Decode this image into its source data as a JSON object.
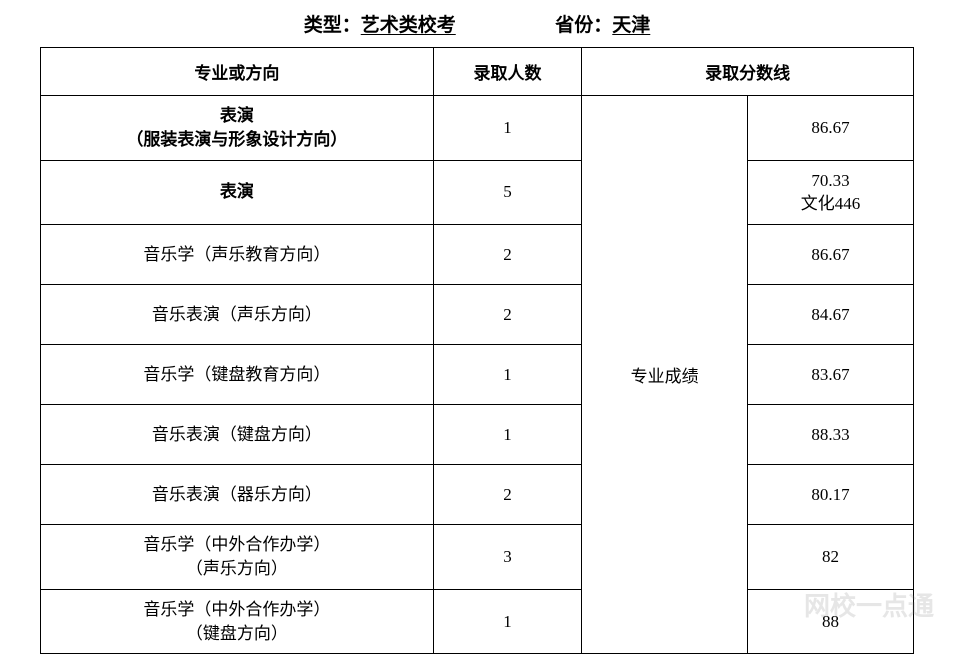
{
  "header": {
    "type_label": "类型：",
    "type_value": "艺术类校考",
    "province_label": "省份：",
    "province_value": "天津"
  },
  "table": {
    "columns": {
      "major": "专业或方向",
      "count": "录取人数",
      "scoreline": "录取分数线"
    },
    "merged_category": "专业成绩",
    "rows": [
      {
        "major_line1": "表演",
        "major_line2": "（服装表演与形象设计方向）",
        "count": "1",
        "score_line1": "86.67",
        "score_line2": "",
        "bold": true
      },
      {
        "major_line1": "表演",
        "major_line2": "",
        "count": "5",
        "score_line1": "70.33",
        "score_line2": "文化446",
        "bold": true
      },
      {
        "major_line1": "音乐学（声乐教育方向）",
        "major_line2": "",
        "count": "2",
        "score_line1": "86.67",
        "score_line2": "",
        "bold": false
      },
      {
        "major_line1": "音乐表演（声乐方向）",
        "major_line2": "",
        "count": "2",
        "score_line1": "84.67",
        "score_line2": "",
        "bold": false
      },
      {
        "major_line1": "音乐学（键盘教育方向）",
        "major_line2": "",
        "count": "1",
        "score_line1": "83.67",
        "score_line2": "",
        "bold": false
      },
      {
        "major_line1": "音乐表演（键盘方向）",
        "major_line2": "",
        "count": "1",
        "score_line1": "88.33",
        "score_line2": "",
        "bold": false
      },
      {
        "major_line1": "音乐表演（器乐方向）",
        "major_line2": "",
        "count": "2",
        "score_line1": "80.17",
        "score_line2": "",
        "bold": false
      },
      {
        "major_line1": "音乐学（中外合作办学）",
        "major_line2": "（声乐方向）",
        "count": "3",
        "score_line1": "82",
        "score_line2": "",
        "bold": false
      },
      {
        "major_line1": "音乐学（中外合作办学）",
        "major_line2": "（键盘方向）",
        "count": "1",
        "score_line1": "88",
        "score_line2": "",
        "bold": false
      }
    ]
  },
  "watermark": "网校一点通"
}
